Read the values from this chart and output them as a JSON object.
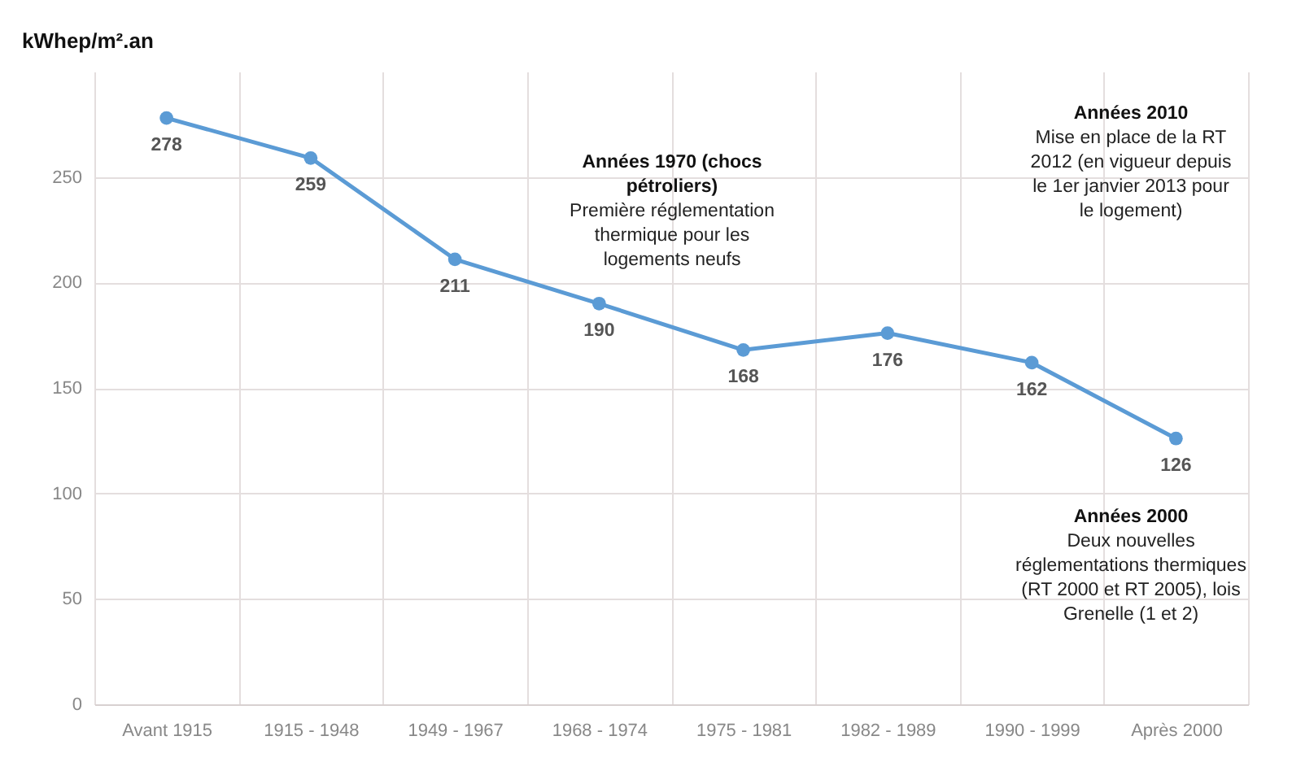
{
  "chart_data": {
    "type": "line",
    "ylabel": "kWhep/m².an",
    "categories": [
      "Avant 1915",
      "1915 - 1948",
      "1949 - 1967",
      "1968 - 1974",
      "1975 - 1981",
      "1982 - 1989",
      "1990 - 1999",
      "Après 2000"
    ],
    "series": [
      {
        "color": "#5b9bd5",
        "values": [
          278,
          259,
          211,
          190,
          168,
          176,
          162,
          126
        ]
      }
    ],
    "ylim": [
      0,
      300
    ],
    "yticks": [
      0,
      50,
      100,
      150,
      200,
      250
    ],
    "grid": true,
    "marker": "circle",
    "data_labels": true,
    "annotations": [
      "Années 1970 (chocs pétroliers)",
      "Première réglementation thermique pour les logements neufs",
      "Années 2010",
      "Mise en place de la RT 2012 (en vigueur depuis le 1er janvier 2013 pour le logement)",
      "Années 2000",
      "Deux nouvelles réglementations thermiques (RT 2000 et RT 2005), lois Grenelle (1 et 2)"
    ]
  }
}
